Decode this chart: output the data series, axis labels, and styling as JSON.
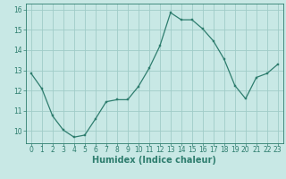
{
  "x": [
    0,
    1,
    2,
    3,
    4,
    5,
    6,
    7,
    8,
    9,
    10,
    11,
    12,
    13,
    14,
    15,
    16,
    17,
    18,
    19,
    20,
    21,
    22,
    23
  ],
  "y": [
    12.85,
    12.1,
    10.75,
    10.05,
    9.7,
    9.8,
    10.6,
    11.45,
    11.55,
    11.55,
    12.2,
    13.1,
    14.2,
    15.85,
    15.5,
    15.5,
    15.05,
    14.45,
    13.55,
    12.25,
    11.6,
    12.65,
    12.85,
    13.3
  ],
  "line_color": "#2e7d6e",
  "marker_color": "#2e7d6e",
  "bg_color": "#c8e8e5",
  "grid_color": "#a0ccc8",
  "xlabel": "Humidex (Indice chaleur)",
  "xlim": [
    -0.5,
    23.5
  ],
  "ylim": [
    9.4,
    16.3
  ],
  "yticks": [
    10,
    11,
    12,
    13,
    14,
    15,
    16
  ],
  "xticks": [
    0,
    1,
    2,
    3,
    4,
    5,
    6,
    7,
    8,
    9,
    10,
    11,
    12,
    13,
    14,
    15,
    16,
    17,
    18,
    19,
    20,
    21,
    22,
    23
  ],
  "tick_color": "#2e7d6e",
  "label_fontsize": 7.0,
  "tick_fontsize": 5.5
}
